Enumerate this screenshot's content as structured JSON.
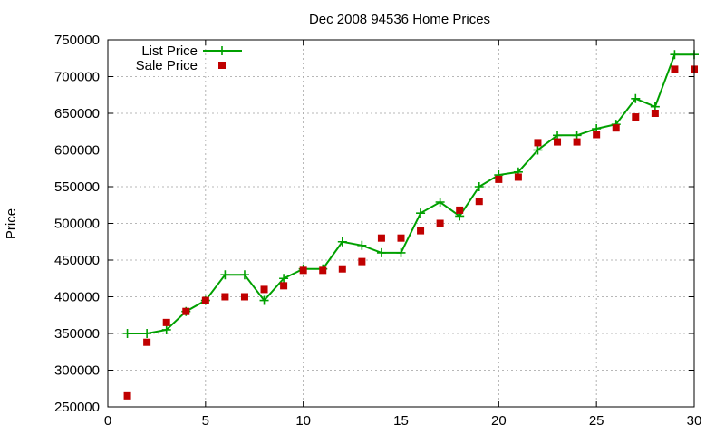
{
  "chart_data": {
    "type": "line",
    "title": "Dec 2008 94536 Home Prices",
    "xlabel": "",
    "ylabel": "Price",
    "xlim": [
      0,
      30
    ],
    "ylim": [
      250000,
      750000
    ],
    "xticks": [
      0,
      5,
      10,
      15,
      20,
      25,
      30
    ],
    "yticks": [
      250000,
      300000,
      350000,
      400000,
      450000,
      500000,
      550000,
      600000,
      650000,
      700000,
      750000
    ],
    "grid": true,
    "legend_position": "top-left",
    "series": [
      {
        "name": "List Price",
        "style": "line-points",
        "marker": "plus",
        "color": "#00a000",
        "x": [
          1,
          2,
          3,
          4,
          5,
          6,
          7,
          8,
          9,
          10,
          11,
          12,
          13,
          14,
          15,
          16,
          17,
          18,
          19,
          20,
          21,
          22,
          23,
          24,
          25,
          26,
          27,
          28,
          29,
          30
        ],
        "values": [
          350000,
          350000,
          355000,
          380000,
          395000,
          430000,
          430000,
          395000,
          425000,
          438000,
          438000,
          475000,
          470000,
          460000,
          460000,
          514000,
          529000,
          510000,
          550000,
          566000,
          570000,
          600000,
          620000,
          620000,
          629000,
          635000,
          670000,
          659000,
          730000,
          730000
        ]
      },
      {
        "name": "Sale Price",
        "style": "points",
        "marker": "square",
        "color": "#c00000",
        "x": [
          1,
          2,
          3,
          4,
          5,
          6,
          7,
          8,
          9,
          10,
          11,
          12,
          13,
          14,
          15,
          16,
          17,
          18,
          19,
          20,
          21,
          22,
          23,
          24,
          25,
          26,
          27,
          28,
          29,
          30
        ],
        "values": [
          265000,
          338000,
          365000,
          380000,
          395000,
          400000,
          400000,
          410000,
          415000,
          436000,
          436000,
          438000,
          448000,
          480000,
          480000,
          490000,
          500000,
          518000,
          530000,
          560000,
          563000,
          610000,
          611000,
          611000,
          621000,
          630000,
          645000,
          650000,
          710000,
          710000
        ]
      }
    ]
  }
}
